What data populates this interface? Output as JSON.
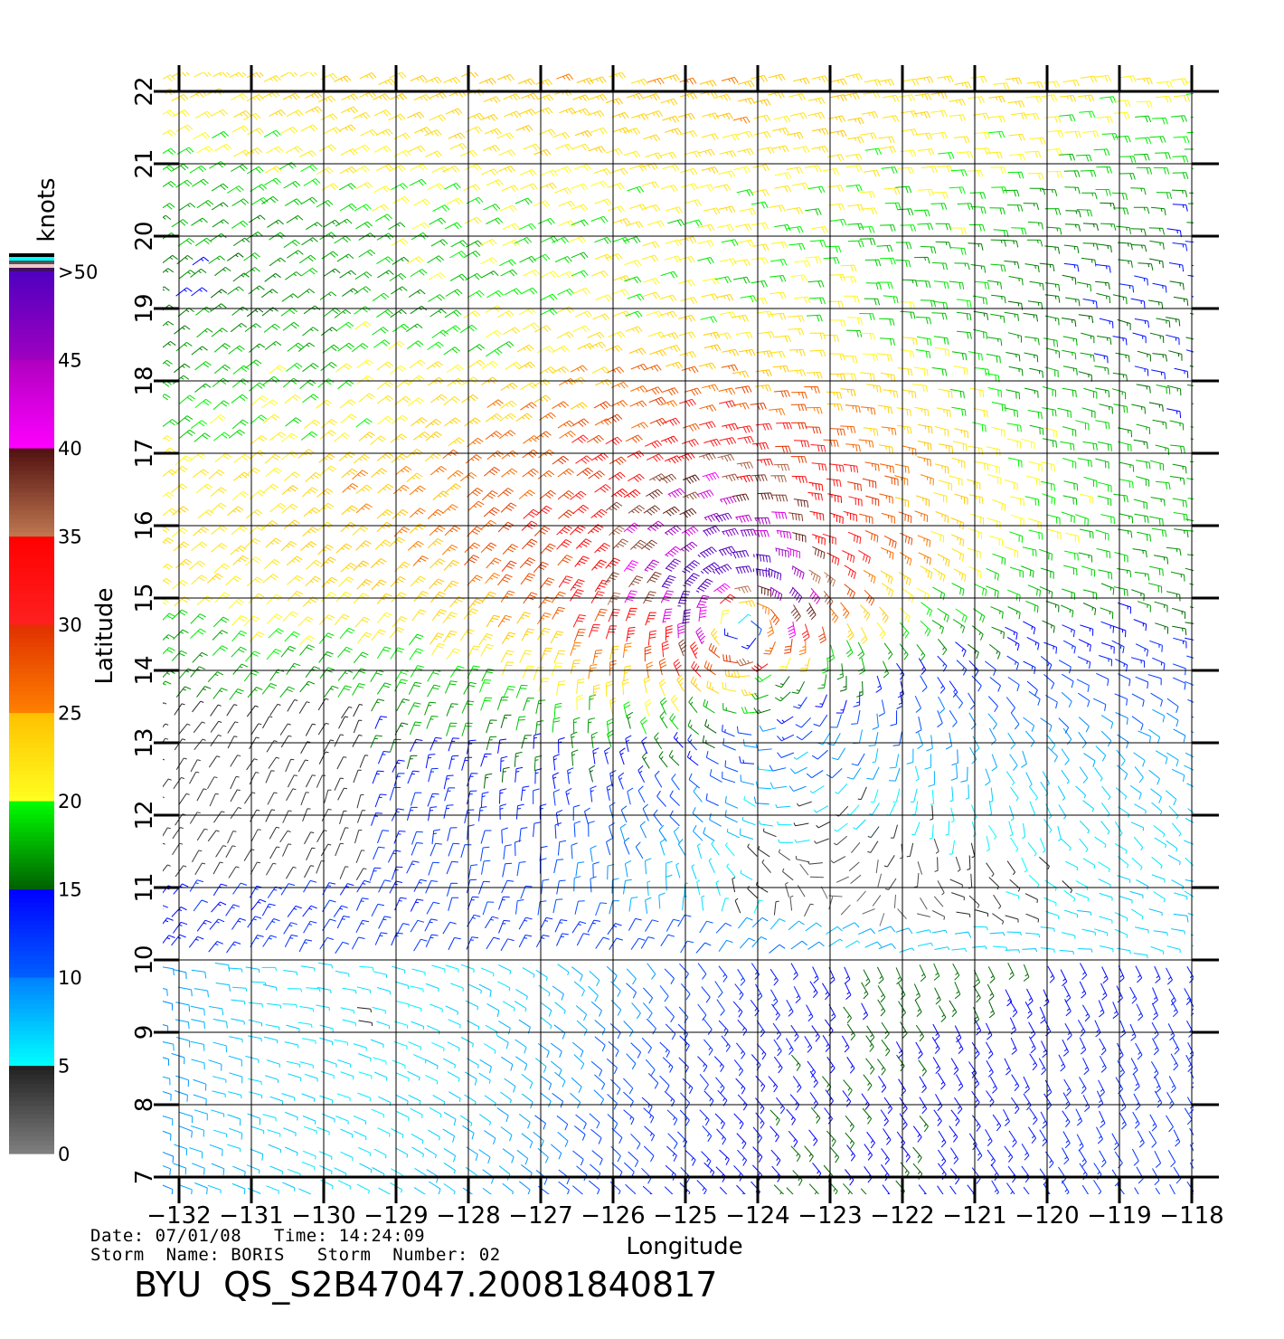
{
  "chart_data": {
    "type": "wind-barb-map",
    "xlabel": "Longitude",
    "ylabel": "Latitude",
    "xlim": [
      -132,
      -118
    ],
    "ylim": [
      7,
      22
    ],
    "xticks": [
      "−132",
      "−131",
      "−130",
      "−129",
      "−128",
      "−127",
      "−126",
      "−125",
      "−124",
      "−123",
      "−122",
      "−121",
      "−120",
      "−119",
      "−118"
    ],
    "yticks": [
      "7",
      "8",
      "9",
      "10",
      "11",
      "12",
      "13",
      "14",
      "15",
      "16",
      "17",
      "18",
      "19",
      "20",
      "21",
      "22"
    ],
    "grid": true,
    "storm_center": [
      -124.3,
      14.8
    ],
    "max_wind_knots": 50,
    "colorbar": {
      "title": "knots",
      "labels": [
        "0",
        "5",
        "10",
        "15",
        "20",
        "25",
        "30",
        "35",
        "40",
        "45",
        ">50"
      ],
      "stops": [
        {
          "v": 0,
          "c": "#808080"
        },
        {
          "v": 5,
          "c": "#202020"
        },
        {
          "v": 5.01,
          "c": "#00ffff"
        },
        {
          "v": 10,
          "c": "#0080ff"
        },
        {
          "v": 10.01,
          "c": "#0060ff"
        },
        {
          "v": 15,
          "c": "#0000ff"
        },
        {
          "v": 15.01,
          "c": "#006000"
        },
        {
          "v": 20,
          "c": "#00ff00"
        },
        {
          "v": 20.01,
          "c": "#ffff20"
        },
        {
          "v": 25,
          "c": "#ffc000"
        },
        {
          "v": 25.01,
          "c": "#ff8000"
        },
        {
          "v": 30,
          "c": "#e03000"
        },
        {
          "v": 30.01,
          "c": "#ff2020"
        },
        {
          "v": 35,
          "c": "#ff0000"
        },
        {
          "v": 35.01,
          "c": "#c07850"
        },
        {
          "v": 40,
          "c": "#501010"
        },
        {
          "v": 40.01,
          "c": "#ff00ff"
        },
        {
          "v": 45,
          "c": "#b000c0"
        },
        {
          "v": 45.01,
          "c": "#a000c0"
        },
        {
          "v": 50,
          "c": "#5000c0"
        }
      ]
    }
  },
  "info": {
    "line1": "Date: 07/01/08   Time: 14:24:09",
    "line2": "Storm  Name: BORIS   Storm  Number: 02",
    "product": "BYU  QS_S2B47047.20081840817"
  }
}
